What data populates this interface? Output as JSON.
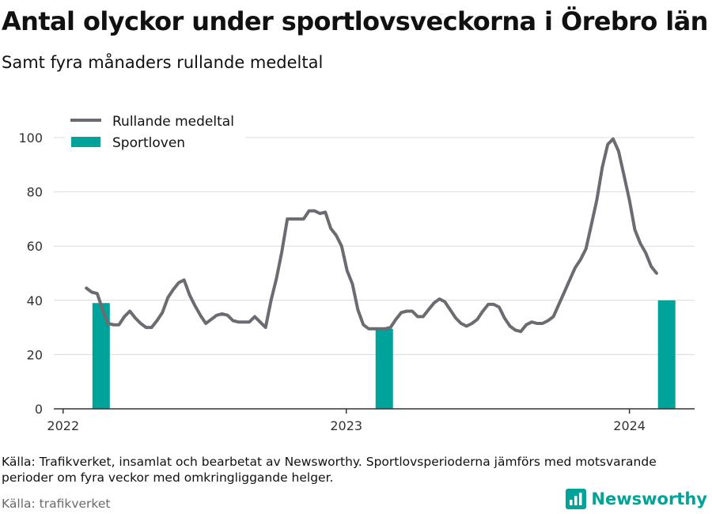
{
  "title": "Antal olyckor under sportlovsveckorna i Örebro län",
  "subtitle": "Samt fyra månaders rullande medeltal",
  "note": "Källa: Trafikverket, insamlat och bearbetat av Newsworthy. Sportlovsperioderna jämförs med motsvarande perioder om fyra veckor med omkringliggande helger.",
  "source": "Källa: trafikverket",
  "brand": "Newsworthy",
  "colors": {
    "line": "#6b6b71",
    "bar": "#00a39a",
    "brand": "#00a39a",
    "grid": "#dcdcdc"
  },
  "chart_data": {
    "type": "line",
    "title": "Antal olyckor under sportlovsveckorna i Örebro län",
    "subtitle": "Samt fyra månaders rullande medeltal",
    "xlabel": "",
    "ylabel": "",
    "ylim": [
      0,
      100
    ],
    "yticks": [
      0,
      20,
      40,
      60,
      80,
      100
    ],
    "xlim": [
      "2021-12-20",
      "2024-03-25"
    ],
    "xticks": [
      {
        "x": "2022-01-01",
        "label": "2022"
      },
      {
        "x": "2023-01-01",
        "label": "2023"
      },
      {
        "x": "2024-01-01",
        "label": "2024"
      }
    ],
    "grid": true,
    "legend": "top-left",
    "series": [
      {
        "name": "Rullande medeltal",
        "type": "line",
        "points": [
          [
            "2022-01-31",
            44.5
          ],
          [
            "2022-02-07",
            43
          ],
          [
            "2022-02-14",
            42.5
          ],
          [
            "2022-02-21",
            36.5
          ],
          [
            "2022-02-28",
            31.5
          ],
          [
            "2022-03-07",
            31
          ],
          [
            "2022-03-14",
            31
          ],
          [
            "2022-03-21",
            34
          ],
          [
            "2022-03-28",
            36
          ],
          [
            "2022-04-04",
            33.5
          ],
          [
            "2022-04-11",
            31.5
          ],
          [
            "2022-04-18",
            30
          ],
          [
            "2022-04-25",
            30
          ],
          [
            "2022-05-02",
            32.5
          ],
          [
            "2022-05-09",
            35.5
          ],
          [
            "2022-05-16",
            41
          ],
          [
            "2022-05-23",
            44
          ],
          [
            "2022-05-30",
            46.5
          ],
          [
            "2022-06-06",
            47.5
          ],
          [
            "2022-06-13",
            42
          ],
          [
            "2022-06-20",
            38
          ],
          [
            "2022-06-27",
            34.5
          ],
          [
            "2022-07-04",
            31.5
          ],
          [
            "2022-07-11",
            33
          ],
          [
            "2022-07-18",
            34.5
          ],
          [
            "2022-07-25",
            35
          ],
          [
            "2022-08-01",
            34.5
          ],
          [
            "2022-08-08",
            32.5
          ],
          [
            "2022-08-15",
            32
          ],
          [
            "2022-08-22",
            32
          ],
          [
            "2022-08-29",
            32
          ],
          [
            "2022-09-05",
            34
          ],
          [
            "2022-09-12",
            32
          ],
          [
            "2022-09-19",
            30
          ],
          [
            "2022-09-26",
            40
          ],
          [
            "2022-10-03",
            48
          ],
          [
            "2022-10-10",
            58
          ],
          [
            "2022-10-17",
            70
          ],
          [
            "2022-10-24",
            70
          ],
          [
            "2022-10-31",
            70
          ],
          [
            "2022-11-07",
            70
          ],
          [
            "2022-11-14",
            73
          ],
          [
            "2022-11-21",
            73
          ],
          [
            "2022-11-28",
            72
          ],
          [
            "2022-12-05",
            72.5
          ],
          [
            "2022-12-12",
            66.5
          ],
          [
            "2022-12-19",
            64
          ],
          [
            "2022-12-26",
            60
          ],
          [
            "2023-01-02",
            51
          ],
          [
            "2023-01-09",
            46
          ],
          [
            "2023-01-16",
            36.5
          ],
          [
            "2023-01-23",
            31
          ],
          [
            "2023-01-30",
            29.5
          ],
          [
            "2023-02-06",
            29.5
          ],
          [
            "2023-02-13",
            29.5
          ],
          [
            "2023-02-20",
            29.5
          ],
          [
            "2023-02-27",
            30
          ],
          [
            "2023-03-06",
            33
          ],
          [
            "2023-03-13",
            35.5
          ],
          [
            "2023-03-20",
            36
          ],
          [
            "2023-03-27",
            36
          ],
          [
            "2023-04-03",
            34
          ],
          [
            "2023-04-10",
            34
          ],
          [
            "2023-04-17",
            36.5
          ],
          [
            "2023-04-24",
            39
          ],
          [
            "2023-05-01",
            40.5
          ],
          [
            "2023-05-08",
            39.5
          ],
          [
            "2023-05-15",
            36.5
          ],
          [
            "2023-05-22",
            33.5
          ],
          [
            "2023-05-29",
            31.5
          ],
          [
            "2023-06-05",
            30.5
          ],
          [
            "2023-06-12",
            31.5
          ],
          [
            "2023-06-19",
            33
          ],
          [
            "2023-06-26",
            36
          ],
          [
            "2023-07-03",
            38.5
          ],
          [
            "2023-07-10",
            38.5
          ],
          [
            "2023-07-17",
            37.5
          ],
          [
            "2023-07-24",
            33.5
          ],
          [
            "2023-07-31",
            30.5
          ],
          [
            "2023-08-07",
            29
          ],
          [
            "2023-08-14",
            28.5
          ],
          [
            "2023-08-21",
            31
          ],
          [
            "2023-08-28",
            32
          ],
          [
            "2023-09-04",
            31.5
          ],
          [
            "2023-09-11",
            31.5
          ],
          [
            "2023-09-18",
            32.5
          ],
          [
            "2023-09-25",
            34
          ],
          [
            "2023-10-02",
            38.5
          ],
          [
            "2023-10-09",
            43
          ],
          [
            "2023-10-16",
            47.5
          ],
          [
            "2023-10-23",
            52
          ],
          [
            "2023-10-30",
            55
          ],
          [
            "2023-11-06",
            59
          ],
          [
            "2023-11-13",
            68
          ],
          [
            "2023-11-20",
            77
          ],
          [
            "2023-11-27",
            89
          ],
          [
            "2023-12-04",
            97.5
          ],
          [
            "2023-12-11",
            99.5
          ],
          [
            "2023-12-18",
            95
          ],
          [
            "2023-12-25",
            86
          ],
          [
            "2024-01-01",
            77
          ],
          [
            "2024-01-08",
            66
          ],
          [
            "2024-01-15",
            61
          ],
          [
            "2024-01-22",
            57.5
          ],
          [
            "2024-01-29",
            52.5
          ],
          [
            "2024-02-05",
            50
          ]
        ]
      },
      {
        "name": "Sportloven",
        "type": "bar",
        "points": [
          [
            "2022-02-19",
            39
          ],
          [
            "2023-02-19",
            29.5
          ],
          [
            "2024-02-18",
            40
          ]
        ]
      }
    ]
  }
}
